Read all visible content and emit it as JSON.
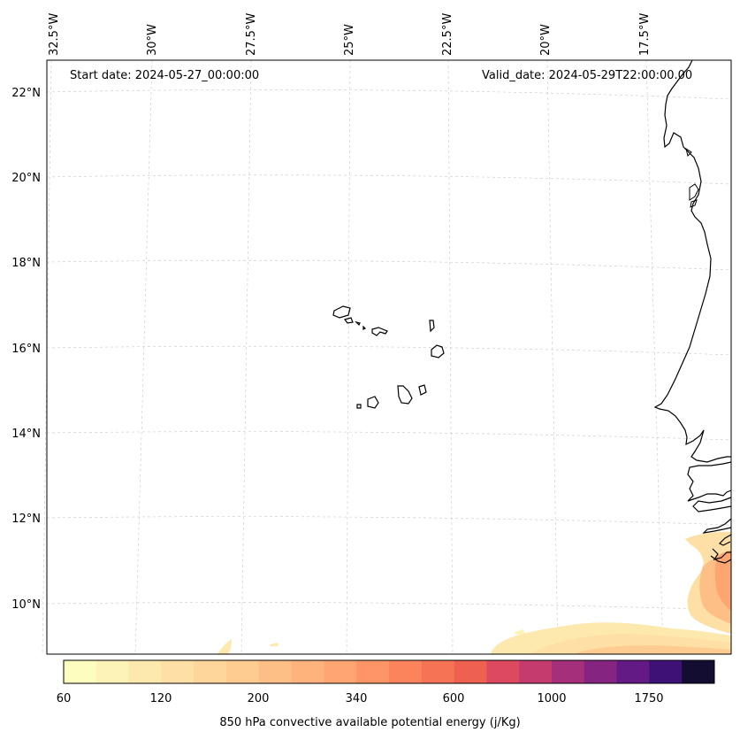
{
  "header": {
    "start_date": "Start date: 2024-05-27_00:00:00",
    "valid_date": "Valid_date: 2024-05-29T22:00:00.00"
  },
  "longitude_labels": [
    "32.5°W",
    "30°W",
    "27.5°W",
    "25°W",
    "22.5°W",
    "20°W",
    "17.5°W"
  ],
  "latitude_labels": [
    "22°N",
    "20°N",
    "18°N",
    "16°N",
    "14°N",
    "12°N",
    "10°N"
  ],
  "colorbar": {
    "label": "850 hPa convective available potential energy (j/Kg)",
    "ticks": [
      "60",
      "120",
      "200",
      "340",
      "600",
      "1000",
      "1750"
    ],
    "colors": [
      "#fcfdbf",
      "#fdf3b7",
      "#fde9ae",
      "#fedfa5",
      "#fed59b",
      "#fecb91",
      "#febf86",
      "#feb37c",
      "#fea572",
      "#fd9567",
      "#fb845d",
      "#f67356",
      "#ee6150",
      "#dd4a60",
      "#c53b6e",
      "#a52f7a",
      "#852581",
      "#631a84",
      "#3d1176",
      "#120d31"
    ]
  },
  "map_features": [
    "coastline",
    "cape-verde-islands",
    "gridlines",
    "cape-shading"
  ]
}
